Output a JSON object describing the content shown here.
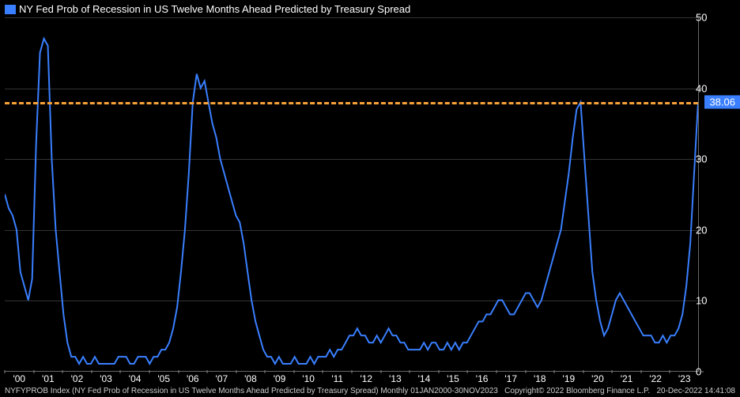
{
  "chart": {
    "type": "line",
    "title": "NY Fed Prob of Recession in US Twelve Months Ahead Predicted by Treasury Spread",
    "background_color": "#000000",
    "line_color": "#3a7fff",
    "line_width": 2,
    "grid_color": "#333333",
    "axis_color": "#666666",
    "text_color": "#ffffff",
    "reference_line": {
      "value": 38.06,
      "color": "#f7a13a",
      "style": "dashed",
      "width": 3,
      "badge_text": "38.06",
      "badge_bg": "#3a7fff"
    },
    "ylim": [
      0,
      50
    ],
    "ytick_step": 10,
    "yticks": [
      0,
      10,
      20,
      30,
      40,
      50
    ],
    "x_ticks": [
      "'00",
      "'01",
      "'02",
      "'03",
      "'04",
      "'05",
      "'06",
      "'07",
      "'08",
      "'09",
      "'10",
      "'11",
      "'12",
      "'13",
      "'14",
      "'15",
      "'16",
      "'17",
      "'18",
      "'19",
      "'20",
      "'21",
      "'22",
      "'23"
    ],
    "current_value": 38.06,
    "legend_swatch_color": "#3a7fff",
    "title_fontsize": 13,
    "tick_fontsize": 13,
    "footer_fontsize": 10,
    "series": {
      "values": [
        25,
        23,
        22,
        20,
        14,
        12,
        10,
        13,
        32,
        45,
        47,
        46,
        30,
        20,
        14,
        8,
        4,
        2,
        2,
        1,
        2,
        1,
        1,
        2,
        1,
        1,
        1,
        1,
        1,
        2,
        2,
        2,
        1,
        1,
        2,
        2,
        2,
        1,
        2,
        2,
        3,
        3,
        4,
        6,
        9,
        14,
        20,
        28,
        38,
        42,
        40,
        41,
        38,
        35,
        33,
        30,
        28,
        26,
        24,
        22,
        21,
        18,
        14,
        10,
        7,
        5,
        3,
        2,
        2,
        1,
        2,
        1,
        1,
        1,
        2,
        1,
        1,
        1,
        2,
        1,
        2,
        2,
        2,
        3,
        2,
        3,
        3,
        4,
        5,
        5,
        6,
        5,
        5,
        4,
        4,
        5,
        4,
        5,
        6,
        5,
        5,
        4,
        4,
        3,
        3,
        3,
        3,
        4,
        3,
        4,
        4,
        3,
        3,
        4,
        3,
        4,
        3,
        4,
        4,
        5,
        6,
        7,
        7,
        8,
        8,
        9,
        10,
        10,
        9,
        8,
        8,
        9,
        10,
        11,
        11,
        10,
        9,
        10,
        12,
        14,
        16,
        18,
        20,
        24,
        28,
        33,
        37,
        38,
        30,
        22,
        14,
        10,
        7,
        5,
        6,
        8,
        10,
        11,
        10,
        9,
        8,
        7,
        6,
        5,
        5,
        5,
        4,
        4,
        5,
        4,
        5,
        5,
        6,
        8,
        12,
        18,
        28,
        38
      ],
      "x_start_year": 2000,
      "x_end_year": 2023,
      "points_per_year": 7.4
    }
  },
  "footer": {
    "left": "NYFYPROB Index (NY Fed Prob of Recession in US Twelve Months Ahead Predicted by Treasury Spread)  Monthly 01JAN2000-30NOV2023",
    "center_right": "Copyright© 2022 Bloomberg Finance L.P.",
    "right": "20-Dec-2022 14:41:08"
  }
}
